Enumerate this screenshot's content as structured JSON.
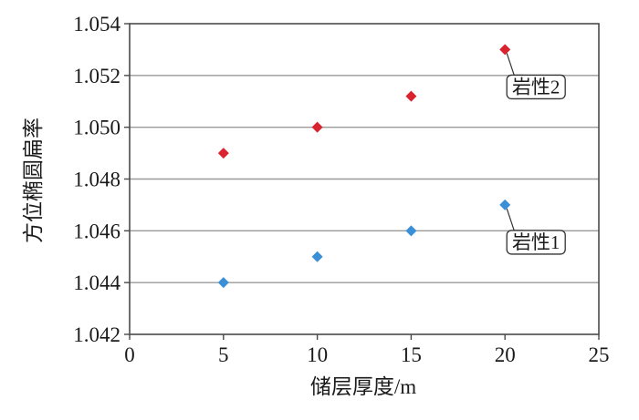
{
  "chart_data": {
    "type": "scatter",
    "xlabel": "储层厚度/m",
    "ylabel": "方位椭圆扁率",
    "xlim": [
      0,
      25
    ],
    "ylim": [
      1.042,
      1.054
    ],
    "x_ticks": [
      0,
      5,
      10,
      15,
      20,
      25
    ],
    "y_ticks": [
      1.042,
      1.044,
      1.046,
      1.048,
      1.05,
      1.052,
      1.054
    ],
    "y_tick_labels": [
      "1.042",
      "1.044",
      "1.046",
      "1.048",
      "1.050",
      "1.052",
      "1.054"
    ],
    "grid": "horizontal",
    "marker": "diamond",
    "series": [
      {
        "name": "岩性2",
        "color": "#d9232e",
        "x": [
          5,
          10,
          15,
          20
        ],
        "y": [
          1.049,
          1.05,
          1.0512,
          1.053
        ]
      },
      {
        "name": "岩性1",
        "color": "#3a8fd6",
        "x": [
          5,
          10,
          15,
          20
        ],
        "y": [
          1.044,
          1.045,
          1.046,
          1.047
        ]
      }
    ]
  }
}
